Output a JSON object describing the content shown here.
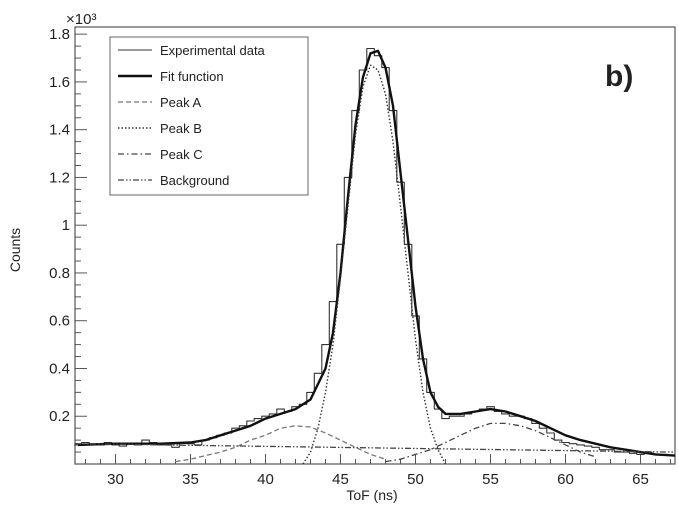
{
  "chart_data": {
    "type": "line",
    "title": "",
    "panel_label": "b)",
    "xlabel": "ToF (ns)",
    "ylabel": "Counts",
    "y_multiplier": "×10³",
    "xlim": [
      27.3,
      67.3
    ],
    "ylim": [
      0,
      1.83
    ],
    "x_ticks": [
      30,
      35,
      40,
      45,
      50,
      55,
      60,
      65
    ],
    "x_tick_labels": [
      "30",
      "35",
      "40",
      "45",
      "50",
      "55",
      "60",
      "65"
    ],
    "y_ticks": [
      0.2,
      0.4,
      0.6,
      0.8,
      1.0,
      1.2,
      1.4,
      1.6,
      1.8
    ],
    "y_tick_labels": [
      "0.2",
      "0.4",
      "0.6",
      "0.8",
      "1",
      "1.2",
      "1.4",
      "1.6",
      "1.8"
    ],
    "grid": false,
    "legend_position": "top-left",
    "legend": [
      {
        "label": "Experimental data",
        "style": "thin-solid"
      },
      {
        "label": "Fit function",
        "style": "thick-solid"
      },
      {
        "label": "Peak A",
        "style": "dashed"
      },
      {
        "label": "Peak B",
        "style": "dotted"
      },
      {
        "label": "Peak C",
        "style": "dash-dot"
      },
      {
        "label": "Background",
        "style": "dash-dot-dot"
      }
    ],
    "series": [
      {
        "name": "Experimental data",
        "kind": "histogram",
        "bin_width": 0.5,
        "x": [
          27.5,
          28.0,
          28.5,
          29.0,
          29.5,
          30.0,
          30.5,
          31.0,
          31.5,
          32.0,
          32.5,
          33.0,
          33.5,
          34.0,
          34.5,
          35.0,
          35.5,
          36.0,
          36.5,
          37.0,
          37.5,
          38.0,
          38.5,
          39.0,
          39.5,
          40.0,
          40.5,
          41.0,
          41.5,
          42.0,
          42.5,
          43.0,
          43.5,
          44.0,
          44.5,
          45.0,
          45.5,
          46.0,
          46.5,
          47.0,
          47.5,
          48.0,
          48.5,
          49.0,
          49.5,
          50.0,
          50.5,
          51.0,
          51.5,
          52.0,
          52.5,
          53.0,
          53.5,
          54.0,
          54.5,
          55.0,
          55.5,
          56.0,
          56.5,
          57.0,
          57.5,
          58.0,
          58.5,
          59.0,
          59.5,
          60.0,
          60.5,
          61.0,
          61.5,
          62.0,
          62.5,
          63.0,
          63.5,
          64.0,
          64.5,
          65.0,
          65.5,
          66.0,
          66.5
        ],
        "y": [
          0.08,
          0.09,
          0.085,
          0.08,
          0.09,
          0.08,
          0.075,
          0.085,
          0.08,
          0.1,
          0.09,
          0.08,
          0.085,
          0.07,
          0.09,
          0.085,
          0.08,
          0.1,
          0.11,
          0.12,
          0.13,
          0.15,
          0.16,
          0.18,
          0.19,
          0.2,
          0.21,
          0.23,
          0.22,
          0.24,
          0.25,
          0.3,
          0.38,
          0.5,
          0.68,
          0.92,
          1.2,
          1.48,
          1.65,
          1.74,
          1.71,
          1.66,
          1.48,
          1.18,
          0.92,
          0.62,
          0.44,
          0.3,
          0.23,
          0.19,
          0.2,
          0.2,
          0.21,
          0.22,
          0.23,
          0.24,
          0.22,
          0.21,
          0.2,
          0.2,
          0.19,
          0.17,
          0.15,
          0.13,
          0.1,
          0.09,
          0.085,
          0.08,
          0.075,
          0.07,
          0.06,
          0.06,
          0.05,
          0.05,
          0.045,
          0.04,
          0.05,
          0.04,
          0.04
        ]
      },
      {
        "name": "Fit function",
        "x": [
          27.5,
          30,
          33,
          35,
          36,
          37,
          38,
          39,
          40,
          41,
          42,
          43,
          44,
          44.5,
          45,
          45.5,
          46,
          46.5,
          47,
          47.5,
          48,
          48.5,
          49,
          49.5,
          50,
          50.5,
          51,
          51.5,
          52,
          53,
          54,
          55,
          56,
          57,
          58,
          59,
          60,
          61,
          62,
          63,
          64,
          65,
          66,
          67.3
        ],
        "y": [
          0.08,
          0.085,
          0.085,
          0.09,
          0.1,
          0.12,
          0.14,
          0.16,
          0.19,
          0.21,
          0.23,
          0.27,
          0.4,
          0.55,
          0.8,
          1.12,
          1.42,
          1.62,
          1.72,
          1.73,
          1.66,
          1.5,
          1.22,
          0.94,
          0.66,
          0.44,
          0.3,
          0.24,
          0.21,
          0.21,
          0.22,
          0.23,
          0.22,
          0.2,
          0.18,
          0.15,
          0.12,
          0.1,
          0.085,
          0.07,
          0.06,
          0.05,
          0.04,
          0.035
        ]
      },
      {
        "name": "Peak A",
        "x": [
          34,
          35,
          36,
          37,
          38,
          39,
          40,
          41,
          42,
          43,
          44,
          45,
          46,
          47,
          48
        ],
        "y": [
          0.01,
          0.02,
          0.035,
          0.05,
          0.07,
          0.1,
          0.12,
          0.15,
          0.16,
          0.155,
          0.13,
          0.1,
          0.07,
          0.04,
          0.02
        ]
      },
      {
        "name": "Peak B",
        "x": [
          42.5,
          43,
          43.5,
          44,
          44.5,
          45,
          45.5,
          46,
          46.5,
          47,
          47.5,
          48,
          48.5,
          49,
          49.5,
          50,
          50.5,
          51,
          51.5,
          52
        ],
        "y": [
          0.0,
          0.05,
          0.15,
          0.3,
          0.5,
          0.78,
          1.08,
          1.38,
          1.58,
          1.67,
          1.65,
          1.55,
          1.35,
          1.08,
          0.8,
          0.52,
          0.3,
          0.15,
          0.06,
          0.0
        ]
      },
      {
        "name": "Peak C",
        "x": [
          48,
          49,
          50,
          51,
          52,
          53,
          54,
          55,
          56,
          57,
          58,
          59,
          60,
          61,
          62
        ],
        "y": [
          0.01,
          0.02,
          0.04,
          0.06,
          0.09,
          0.12,
          0.15,
          0.17,
          0.17,
          0.16,
          0.14,
          0.11,
          0.08,
          0.05,
          0.03
        ]
      },
      {
        "name": "Background",
        "x": [
          27.3,
          67.3
        ],
        "y": [
          0.085,
          0.05
        ]
      }
    ]
  }
}
